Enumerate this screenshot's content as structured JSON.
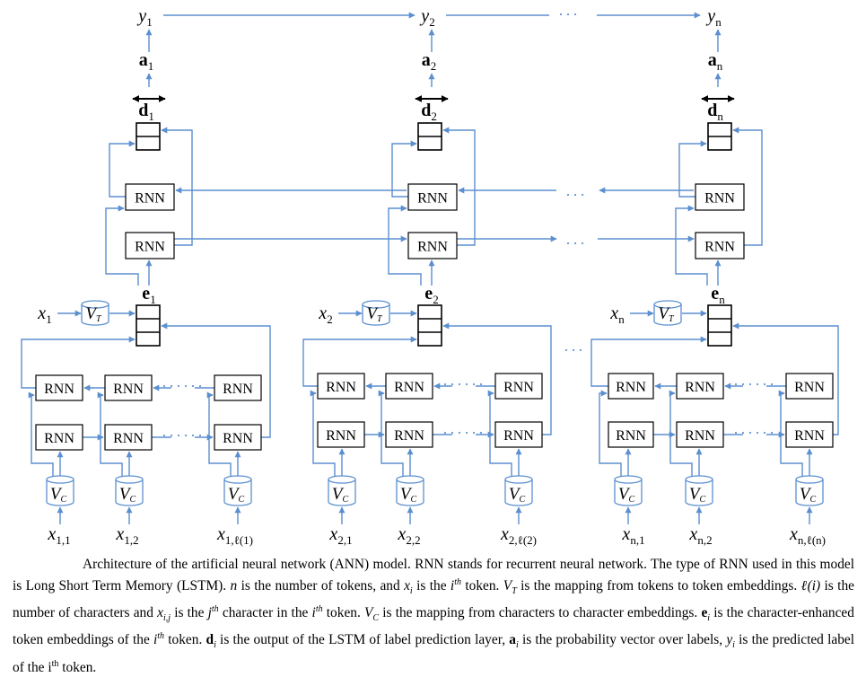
{
  "diagram": {
    "columns": [
      {
        "y_base": "y",
        "y_sub": "1",
        "a_base": "a",
        "a_sub": "1",
        "d_base": "d",
        "d_sub": "1",
        "e_base": "e",
        "e_sub": "1",
        "x_base": "x",
        "x_sub": "1",
        "chars": [
          {
            "base": "x",
            "sub": "1,1"
          },
          {
            "base": "x",
            "sub": "1,2"
          },
          {
            "base": "x",
            "sub": "1,ℓ(1)"
          }
        ]
      },
      {
        "y_base": "y",
        "y_sub": "2",
        "a_base": "a",
        "a_sub": "2",
        "d_base": "d",
        "d_sub": "2",
        "e_base": "e",
        "e_sub": "2",
        "x_base": "x",
        "x_sub": "2",
        "chars": [
          {
            "base": "x",
            "sub": "2,1"
          },
          {
            "base": "x",
            "sub": "2,2"
          },
          {
            "base": "x",
            "sub": "2,ℓ(2)"
          }
        ]
      },
      {
        "y_base": "y",
        "y_sub": "n",
        "a_base": "a",
        "a_sub": "n",
        "d_base": "d",
        "d_sub": "n",
        "e_base": "e",
        "e_sub": "n",
        "x_base": "x",
        "x_sub": "n",
        "chars": [
          {
            "base": "x",
            "sub": "n,1"
          },
          {
            "base": "x",
            "sub": "n,2"
          },
          {
            "base": "x",
            "sub": "n,ℓ(n)"
          }
        ]
      }
    ],
    "rnn_label": "RNN",
    "vt_base": "V",
    "vt_sub": "T",
    "vc_base": "V",
    "vc_sub": "C",
    "ellipsis": "···",
    "small_ellipsis": "······"
  },
  "caption": {
    "segments": [
      {
        "t": "Architecture of the artificial neural network (ANN) model. RNN stands for recurrent neural network. The type of RNN used in this model is Long Short Term Memory (LSTM). "
      },
      {
        "t": "n",
        "s": "i"
      },
      {
        "t": " is the number of tokens, and "
      },
      {
        "t": "x",
        "s": "i"
      },
      {
        "t": "i",
        "s": "isub"
      },
      {
        "t": " is the "
      },
      {
        "t": "i",
        "s": "i"
      },
      {
        "t": "th",
        "s": "isup"
      },
      {
        "t": " token. "
      },
      {
        "t": "V",
        "s": "i"
      },
      {
        "t": "T",
        "s": "isub"
      },
      {
        "t": " is the mapping from tokens to token embeddings. "
      },
      {
        "t": "ℓ(",
        "s": "i"
      },
      {
        "t": "i",
        "s": "i"
      },
      {
        "t": ")",
        "s": "i"
      },
      {
        "t": " is the number of characters and "
      },
      {
        "t": "x",
        "s": "i"
      },
      {
        "t": "i,j",
        "s": "isub"
      },
      {
        "t": " is the "
      },
      {
        "t": "j",
        "s": "i"
      },
      {
        "t": "th",
        "s": "isup"
      },
      {
        "t": " character in the "
      },
      {
        "t": "i",
        "s": "i"
      },
      {
        "t": "th",
        "s": "isup"
      },
      {
        "t": " token. "
      },
      {
        "t": "V",
        "s": "i"
      },
      {
        "t": "C",
        "s": "isub"
      },
      {
        "t": " is the mapping from characters to character embeddings. "
      },
      {
        "t": "e",
        "s": "b"
      },
      {
        "t": "i",
        "s": "isub"
      },
      {
        "t": " is the character-enhanced token embeddings of the "
      },
      {
        "t": "i",
        "s": "i"
      },
      {
        "t": "th",
        "s": "isup"
      },
      {
        "t": " token. "
      },
      {
        "t": "d",
        "s": "b"
      },
      {
        "t": "i",
        "s": "isub"
      },
      {
        "t": " is the output of the LSTM of label prediction layer, "
      },
      {
        "t": "a",
        "s": "b"
      },
      {
        "t": "i",
        "s": "isub"
      },
      {
        "t": " is the probability vector over labels, "
      },
      {
        "t": "y",
        "s": "i"
      },
      {
        "t": "i",
        "s": "isub"
      },
      {
        "t": " is the predicted label of the "
      },
      {
        "t": "i",
        "s": "r"
      },
      {
        "t": "th",
        "s": "sup"
      },
      {
        "t": " token."
      }
    ]
  },
  "colors": {
    "arrow": "#5b8fd0",
    "box": "#000000",
    "background": "#ffffff"
  }
}
